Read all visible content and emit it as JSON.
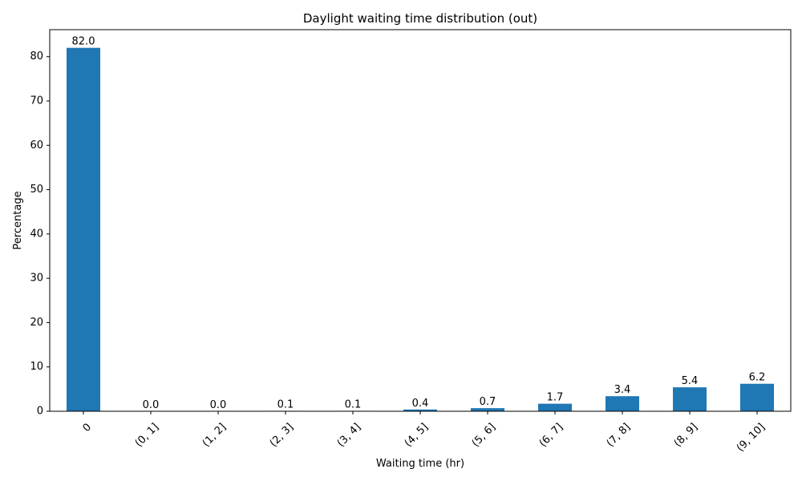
{
  "chart_data": {
    "type": "bar",
    "title": "Daylight waiting time distribution (out)",
    "xlabel": "Waiting time (hr)",
    "ylabel": "Percentage",
    "categories": [
      "0",
      "(0, 1]",
      "(1, 2]",
      "(2, 3]",
      "(3, 4]",
      "(4, 5]",
      "(5, 6]",
      "(6, 7]",
      "(7, 8]",
      "(8, 9]",
      "(9, 10]"
    ],
    "values": [
      82.0,
      0.0,
      0.0,
      0.1,
      0.1,
      0.4,
      0.7,
      1.7,
      3.4,
      5.4,
      6.2
    ],
    "data_labels": [
      "82.0",
      "0.0",
      "0.0",
      "0.1",
      "0.1",
      "0.4",
      "0.7",
      "1.7",
      "3.4",
      "5.4",
      "6.2"
    ],
    "ylim": [
      0,
      86.1
    ],
    "yticks": [
      0,
      10,
      20,
      30,
      40,
      50,
      60,
      70,
      80
    ],
    "bar_color": "#1f77b4",
    "grid": false,
    "legend": "none"
  }
}
